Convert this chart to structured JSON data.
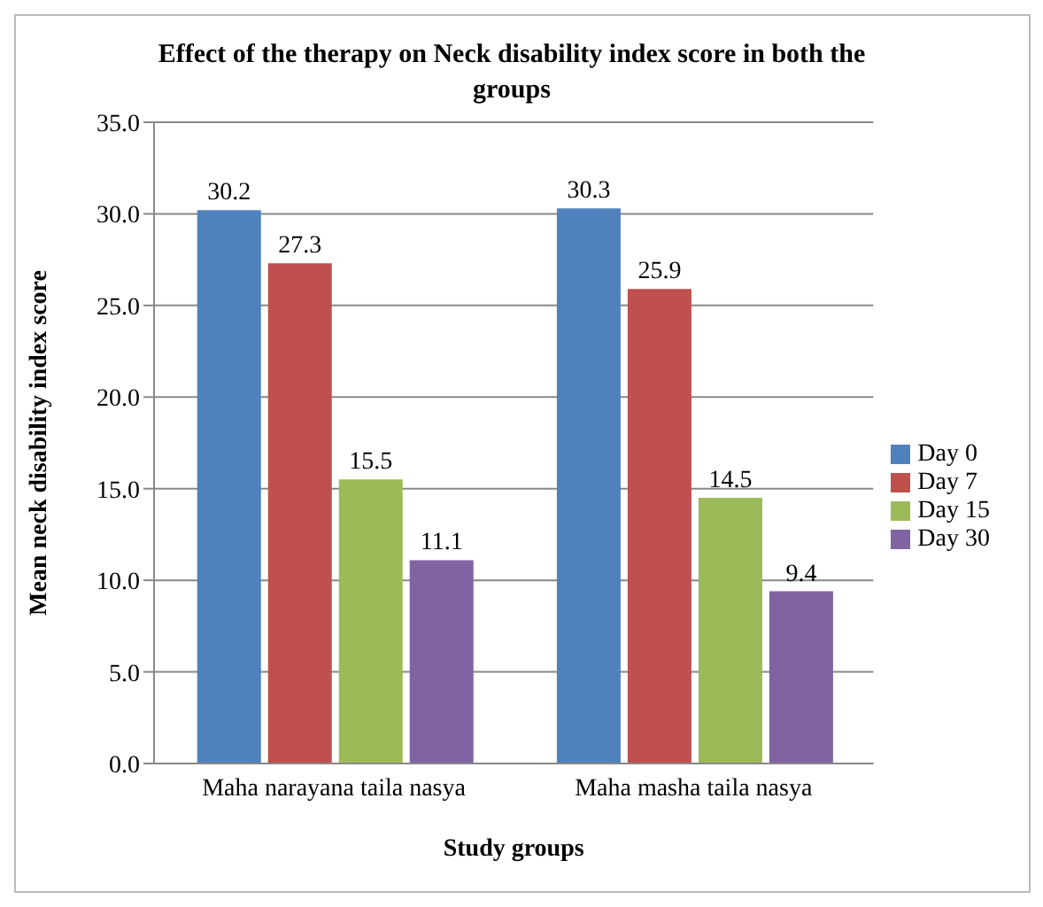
{
  "chart_data": {
    "type": "bar",
    "title": "Effect of the therapy on Neck disability index score in both the groups",
    "xlabel": "Study groups",
    "ylabel": "Mean neck disability index score",
    "categories": [
      "Maha narayana taila nasya",
      "Maha masha taila nasya"
    ],
    "series": [
      {
        "name": "Day 0",
        "color": "#4f81bd",
        "values": [
          30.2,
          30.3
        ]
      },
      {
        "name": "Day 7",
        "color": "#c0504d",
        "values": [
          27.3,
          25.9
        ]
      },
      {
        "name": "Day 15",
        "color": "#9bbb59",
        "values": [
          15.5,
          14.5
        ]
      },
      {
        "name": "Day 30",
        "color": "#8064a2",
        "values": [
          11.1,
          9.4
        ]
      }
    ],
    "ylim": [
      0,
      35
    ],
    "yticks": [
      {
        "value": 0,
        "label": "0.0"
      },
      {
        "value": 5,
        "label": "5.0"
      },
      {
        "value": 10,
        "label": "10.0"
      },
      {
        "value": 15,
        "label": "15.0"
      },
      {
        "value": 20,
        "label": "20.0"
      },
      {
        "value": 25,
        "label": "25.0"
      },
      {
        "value": 30,
        "label": "30.0"
      },
      {
        "value": 35,
        "label": "35.0"
      }
    ],
    "grid": "y",
    "legend": "right",
    "data_labels": true
  }
}
